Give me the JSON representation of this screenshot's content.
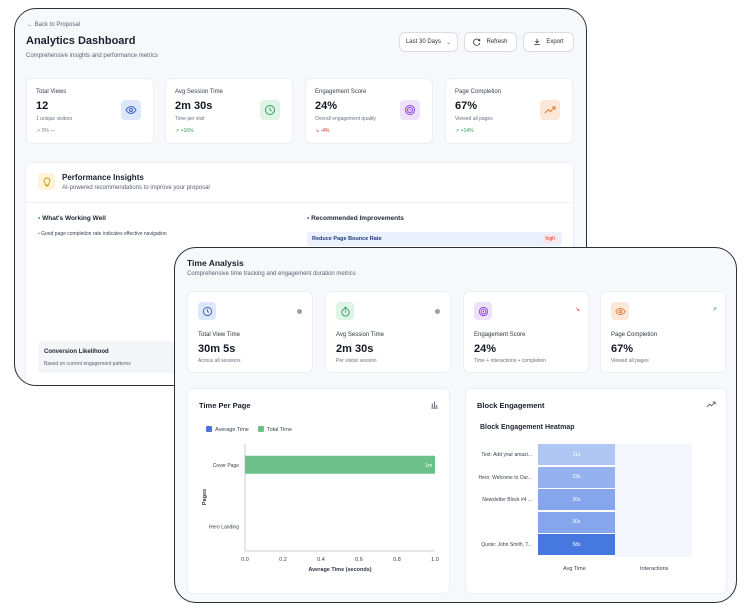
{
  "back_window": {
    "back_link": "← Back to Proposal",
    "title": "Analytics Dashboard",
    "subtitle": "Comprehensive insights and performance metrics",
    "period_select": "Last 30 Days",
    "refresh_label": "Refresh",
    "export_label": "Export",
    "kpis": [
      {
        "label": "Total Views",
        "value": "12",
        "sub": "1 unique visitors",
        "trend": "0%",
        "icon": "eye-icon"
      },
      {
        "label": "Avg Session Time",
        "value": "2m 30s",
        "sub": "Time per visit",
        "trend": "+16%",
        "icon": "clock-icon"
      },
      {
        "label": "Engagement Score",
        "value": "24%",
        "sub": "Overall engagement quality",
        "trend": "-4%",
        "icon": "target-icon"
      },
      {
        "label": "Page Completion",
        "value": "67%",
        "sub": "Viewed all pages",
        "trend": "+14%",
        "icon": "trending-up-icon"
      }
    ],
    "insights": {
      "title": "Performance Insights",
      "subtitle": "AI-powered recommendations to improve your proposal",
      "working_well_heading": "What's Working Well",
      "working_well_items": [
        "Good page completion rate indicates effective navigation"
      ],
      "improvements_heading": "Recommended Improvements",
      "improvement_items": [
        {
          "title": "Reduce Page Bounce Rate",
          "priority": "high"
        }
      ],
      "conversion_title": "Conversion Likelihood",
      "conversion_sub": "Based on current engagement patterns"
    }
  },
  "front_window": {
    "title": "Time Analysis",
    "subtitle": "Comprehensive time tracking and engagement duration metrics",
    "cards": [
      {
        "label": "Total View Time",
        "value": "30m 5s",
        "sub": "Across all sessions",
        "icon": "clock-icon"
      },
      {
        "label": "Avg Session Time",
        "value": "2m 30s",
        "sub": "Per visitor session",
        "icon": "stopwatch-icon"
      },
      {
        "label": "Engagement Score",
        "value": "24%",
        "sub": "Time + interactions + completion",
        "icon": "target-icon"
      },
      {
        "label": "Page Completion",
        "value": "67%",
        "sub": "Viewed all pages",
        "icon": "eye-icon"
      }
    ],
    "time_per_page_title": "Time Per Page",
    "block_engagement_title": "Block Engagement"
  },
  "chart_data": [
    {
      "type": "bar",
      "orientation": "horizontal",
      "title": "Time Per Page",
      "categories": [
        "Cover Page",
        "Hero Landing"
      ],
      "series": [
        {
          "name": "Average Time",
          "values": [
            0,
            0
          ]
        },
        {
          "name": "Total Time",
          "values": [
            1.0,
            0
          ]
        }
      ],
      "data_labels": [
        "1m"
      ],
      "xlabel": "Average Time (seconds)",
      "ylabel": "Pages",
      "xlim": [
        0,
        1.0
      ],
      "xticks": [
        "0.0",
        "0.2",
        "0.4",
        "0.6",
        "0.8",
        "1.0"
      ],
      "colors": {
        "Average Time": "#4a74d8",
        "Total Time": "#6cc08a"
      },
      "legend": "top-left"
    },
    {
      "type": "heatmap",
      "title": "Block Engagement Heatmap",
      "rows": [
        "Text: Add your amazi...",
        "Hero: Welcome to Our...",
        "Newsletter Block #4 ...",
        "",
        "Quote: John Smith, T..."
      ],
      "columns": [
        "Avg Time",
        "Interactions"
      ],
      "avg_time_labels": [
        "11s",
        "23s",
        "30s",
        "30s",
        "58s"
      ],
      "avg_time_values": [
        11,
        23,
        30,
        30,
        58
      ],
      "interactions_values": [
        0,
        0,
        0,
        0,
        0
      ]
    }
  ]
}
